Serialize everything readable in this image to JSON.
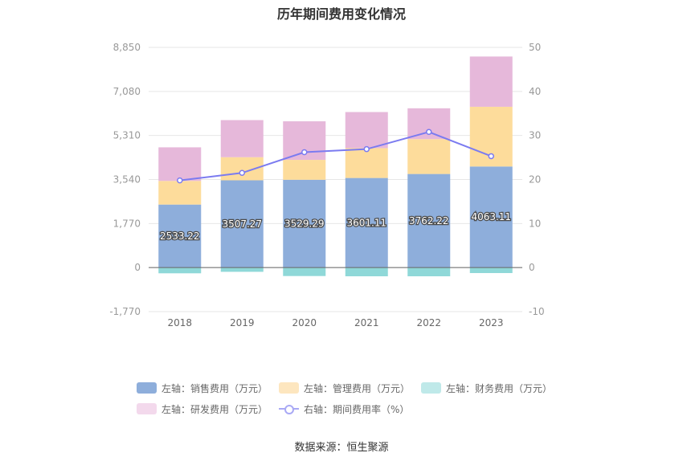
{
  "title": "历年期间费用变化情况",
  "source": "数据来源：恒生聚源",
  "colors": {
    "sales": "#8eaedb",
    "admin": "#fddc9b",
    "finance": "#8fd8d8",
    "rnd": "#e6b8da",
    "rate_line": "#7b7bf0",
    "legend_admin": "#fde6bf",
    "legend_finance": "#bfe9e9",
    "legend_rnd": "#f3d9ec"
  },
  "legend": [
    {
      "label": "左轴：销售费用（万元）",
      "color_key": "sales"
    },
    {
      "label": "左轴：管理费用（万元）",
      "color_key": "legend_admin"
    },
    {
      "label": "左轴：财务费用（万元）",
      "color_key": "legend_finance"
    },
    {
      "label": "左轴：研发费用（万元）",
      "color_key": "legend_rnd"
    },
    {
      "label": "右轴：期间费用率（%）",
      "color_key": "rate_line"
    }
  ],
  "chart_data": {
    "type": "bar",
    "stacked": true,
    "categories": [
      "2018",
      "2019",
      "2020",
      "2021",
      "2022",
      "2023"
    ],
    "left_axis": {
      "ticks": [
        "-1,770",
        "0",
        "1,770",
        "3,540",
        "5,310",
        "7,080",
        "8,850"
      ],
      "range": [
        -1770,
        8850
      ]
    },
    "right_axis": {
      "ticks": [
        "-10",
        "0",
        "10",
        "20",
        "30",
        "40",
        "50"
      ],
      "range": [
        -10,
        50
      ]
    },
    "series": [
      {
        "name": "左轴：销售费用（万元）",
        "values": [
          2533.22,
          3507.27,
          3529.29,
          3601.11,
          3762.22,
          4063.11
        ],
        "labels": [
          "2533.22",
          "3507.27",
          "3529.29",
          "3601.11",
          "3762.22",
          "4063.11"
        ]
      },
      {
        "name": "左轴：管理费用（万元）",
        "values": [
          950,
          930,
          800,
          1200,
          1400,
          2400
        ]
      },
      {
        "name": "左轴：财务费用（万元）",
        "values": [
          -230,
          -170,
          -340,
          -350,
          -350,
          -220
        ]
      },
      {
        "name": "左轴：研发费用（万元）",
        "values": [
          1350,
          1490,
          1550,
          1450,
          1240,
          2020
        ]
      },
      {
        "name": "右轴：期间费用率（%）",
        "type": "line",
        "axis": "right",
        "values": [
          19.8,
          21.5,
          26.2,
          26.9,
          30.8,
          25.3
        ]
      }
    ]
  }
}
